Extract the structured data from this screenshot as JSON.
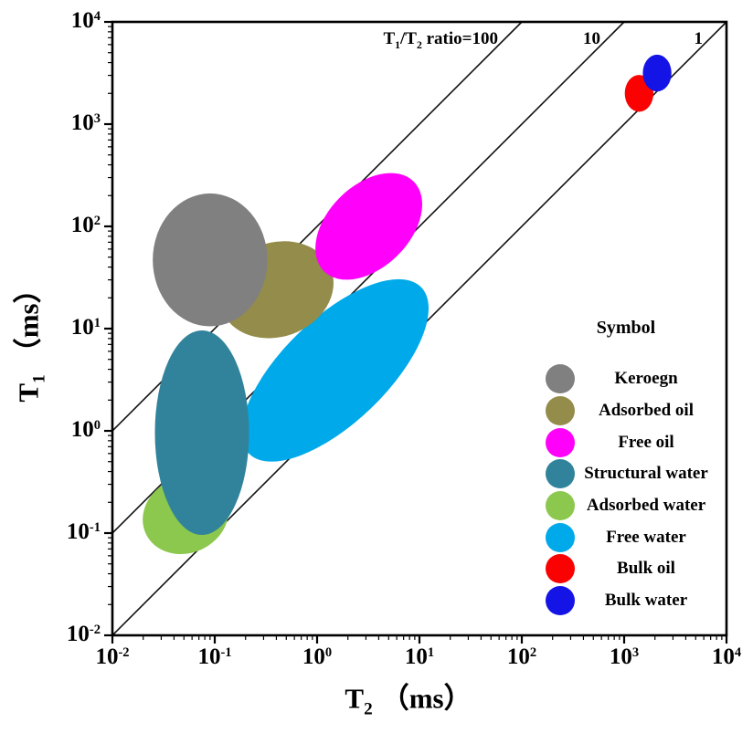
{
  "chart_data": {
    "type": "scatter",
    "description": "NMR T1 vs T2 log-log crossplot with fluid-component ellipse regions and T1/T2 ratio guide lines",
    "x_axis": {
      "label_main": "T",
      "label_sub": "2",
      "label_unit": "（ms）",
      "scale": "log",
      "tick_base": "10",
      "tick_exponents": [
        -2,
        -1,
        0,
        1,
        2,
        3,
        4
      ],
      "range": [
        0.01,
        10000
      ]
    },
    "y_axis": {
      "label_main": "T",
      "label_sub": "1",
      "label_unit": "（ms）",
      "scale": "log",
      "tick_base": "10",
      "tick_exponents": [
        -2,
        -1,
        0,
        1,
        2,
        3,
        4
      ],
      "range": [
        0.01,
        10000
      ]
    },
    "ratio_lines": [
      {
        "ratio": 100,
        "label_segments": [
          {
            "text": "T"
          },
          {
            "sub": "1"
          },
          {
            "text": "/T"
          },
          {
            "sub": "2"
          },
          {
            "text": " ratio=100"
          }
        ]
      },
      {
        "ratio": 10,
        "label_segments": [
          {
            "text": "10"
          }
        ]
      },
      {
        "ratio": 1,
        "label_segments": [
          {
            "text": "1"
          }
        ]
      }
    ],
    "line_color": "#111111",
    "regions_draw_order": [
      {
        "name": "Free water",
        "color": "#00A9E9",
        "t2": 1.5,
        "t1": 3.9,
        "rx_decades": 1.17,
        "ry_decades": 0.51,
        "rotation_deg": -44
      },
      {
        "name": "Adsorbed water",
        "color": "#8BC84D",
        "t2": 0.052,
        "t1": 0.15,
        "rx_decades": 0.43,
        "ry_decades": 0.37,
        "rotation_deg": -25
      },
      {
        "name": "Structural water",
        "color": "#31839B",
        "t2": 0.075,
        "t1": 0.96,
        "rx_decades": 0.46,
        "ry_decades": 1.0,
        "rotation_deg": 0
      },
      {
        "name": "Adsorbed oil",
        "color": "#948C4A",
        "t2": 0.4,
        "t1": 24,
        "rx_decades": 0.57,
        "ry_decades": 0.46,
        "rotation_deg": -20
      },
      {
        "name": "Free oil",
        "color": "#FF00FA",
        "t2": 3.2,
        "t1": 100,
        "rx_decades": 0.62,
        "ry_decades": 0.4,
        "rotation_deg": -45
      },
      {
        "name": "Keroegn",
        "color": "#808080",
        "t2": 0.09,
        "t1": 47,
        "rx_decades": 0.56,
        "ry_decades": 0.65,
        "rotation_deg": 0
      },
      {
        "name": "Bulk oil",
        "color": "#FA0202",
        "t2": 1400,
        "t1": 2000,
        "rx_decades": 0.14,
        "ry_decades": 0.18,
        "rotation_deg": 0
      },
      {
        "name": "Bulk water",
        "color": "#1414E6",
        "t2": 2100,
        "t1": 3160,
        "rx_decades": 0.14,
        "ry_decades": 0.18,
        "rotation_deg": 0
      }
    ],
    "legend": {
      "title": "Symbol",
      "items": [
        {
          "label": "Keroegn",
          "color": "#808080"
        },
        {
          "label": "Adsorbed oil",
          "color": "#948C4A"
        },
        {
          "label": "Free oil",
          "color": "#FF00FA"
        },
        {
          "label": "Structural water",
          "color": "#31839B"
        },
        {
          "label": "Adsorbed water",
          "color": "#8BC84D"
        },
        {
          "label": "Free water",
          "color": "#00A9E9"
        },
        {
          "label": "Bulk oil",
          "color": "#FA0202"
        },
        {
          "label": "Bulk water",
          "color": "#1414E6"
        }
      ]
    }
  }
}
